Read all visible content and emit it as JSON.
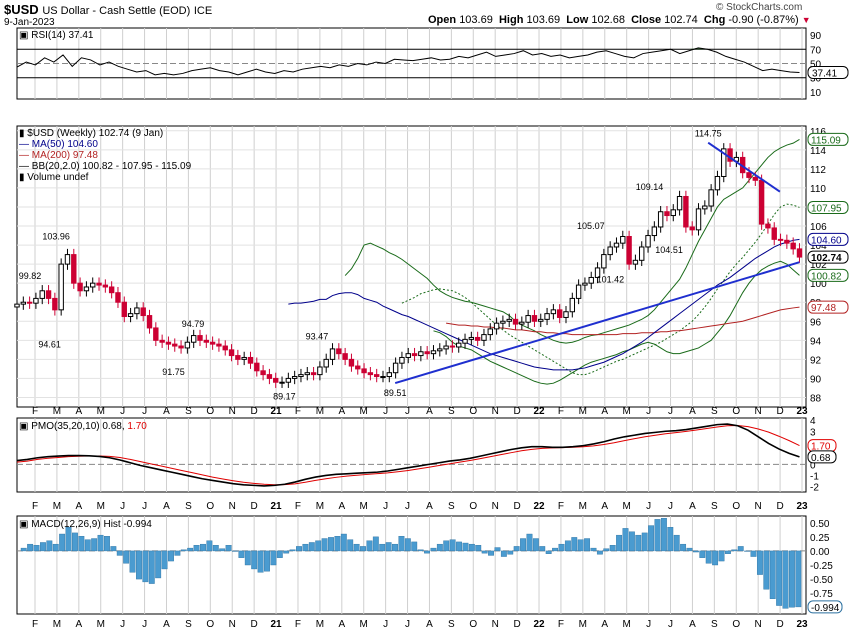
{
  "header": {
    "symbol": "$USD",
    "name": "US Dollar - Cash Settle (EOD)",
    "exchange": "ICE",
    "date": "9-Jan-2023",
    "quote": {
      "open_label": "Open",
      "open": "103.69",
      "high_label": "High",
      "high": "103.69",
      "low_label": "Low",
      "low": "102.68",
      "close_label": "Close",
      "close": "102.74",
      "chg_label": "Chg",
      "chg": "-0.90 (-0.87%)"
    },
    "watermark": "© StockCharts.com",
    "legend_arrow": "▼"
  },
  "colors": {
    "price_up": "#000000",
    "price_down": "#cc0033",
    "ma50": "#00008b",
    "ma200": "#b22222",
    "bollinger": "#1a6b1a",
    "trendline": "#1f2fcf",
    "rsi_fill": "#2e6b2e",
    "pmo_line": "#000000",
    "pmo_signal": "#e00000",
    "macd_hist": "#4a9bd0"
  },
  "x_axis": {
    "months": [
      "F",
      "M",
      "A",
      "M",
      "J",
      "J",
      "A",
      "S",
      "O",
      "N",
      "D",
      "21",
      "F",
      "M",
      "A",
      "M",
      "J",
      "J",
      "A",
      "S",
      "O",
      "N",
      "D",
      "22",
      "F",
      "M",
      "A",
      "M",
      "J",
      "J",
      "A",
      "S",
      "O",
      "N",
      "D",
      "23"
    ],
    "year_labels": [
      "21",
      "22",
      "23"
    ]
  },
  "rsi": {
    "label": "RSI(14) 37.41",
    "current": 37.41,
    "current_label": "37.41",
    "ticks": [
      "90",
      "70",
      "50",
      "30",
      "10"
    ],
    "levels": [
      70,
      50,
      30
    ],
    "y_range": [
      0,
      100
    ],
    "values": [
      45,
      52,
      48,
      58,
      52,
      62,
      46,
      58,
      55,
      48,
      52,
      46,
      42,
      38,
      40,
      34,
      36,
      34,
      36,
      40,
      42,
      44,
      40,
      38,
      34,
      38,
      42,
      38,
      36,
      40,
      38,
      42,
      44,
      46,
      44,
      48,
      46,
      50,
      48,
      52,
      50,
      56,
      55,
      54,
      56,
      58,
      55,
      56,
      60,
      58,
      62,
      66,
      60,
      62,
      64,
      68,
      62,
      64,
      60,
      62,
      58,
      60,
      62,
      66,
      68,
      64,
      60,
      58,
      64,
      66,
      68,
      70,
      64,
      68,
      72,
      70,
      66,
      60,
      56,
      52,
      46,
      40,
      42,
      40,
      38,
      37.41
    ]
  },
  "price_panel": {
    "legend": [
      {
        "text": "$USD (Weekly) 102.74 (9 Jan)",
        "color": "#000000",
        "marker": "candle"
      },
      {
        "text": "MA(50) 104.60",
        "color": "#00008b",
        "marker": "line"
      },
      {
        "text": "MA(200) 97.48",
        "color": "#b22222",
        "marker": "line"
      },
      {
        "text": "BB(20,2.0) 100.82 - 107.95 - 115.09",
        "color": "#000000",
        "marker": "band"
      },
      {
        "text": "Volume undef",
        "color": "#000000",
        "marker": "bar"
      }
    ],
    "y_ticks": [
      "116",
      "114",
      "112",
      "110",
      "108",
      "106",
      "104",
      "102",
      "100",
      "98",
      "96",
      "94",
      "92",
      "90",
      "88"
    ],
    "right_tags": [
      {
        "text": "115.09",
        "value": 115.09,
        "color": "#1a6b1a",
        "bold": false
      },
      {
        "text": "107.95",
        "value": 107.95,
        "color": "#1a6b1a",
        "bold": false
      },
      {
        "text": "104.60",
        "value": 104.6,
        "color": "#00008b",
        "bold": false
      },
      {
        "text": "102.74",
        "value": 102.74,
        "color": "#000000",
        "bold": true
      },
      {
        "text": "100.82",
        "value": 100.82,
        "color": "#1a6b1a",
        "bold": false
      },
      {
        "text": "97.48",
        "value": 97.48,
        "color": "#b22222",
        "bold": false
      }
    ],
    "annotations": [
      {
        "text": "103.96",
        "week": 6,
        "value": 103.96,
        "pos": "above"
      },
      {
        "text": "99.82",
        "week": 2,
        "value": 99.82,
        "pos": "above"
      },
      {
        "text": "94.61",
        "week": 5,
        "value": 94.61,
        "pos": "below"
      },
      {
        "text": "94.79",
        "week": 27,
        "value": 94.79,
        "pos": "above"
      },
      {
        "text": "91.75",
        "week": 24,
        "value": 91.75,
        "pos": "below"
      },
      {
        "text": "89.17",
        "week": 41,
        "value": 89.17,
        "pos": "below"
      },
      {
        "text": "93.47",
        "week": 46,
        "value": 93.47,
        "pos": "above"
      },
      {
        "text": "89.51",
        "week": 58,
        "value": 89.51,
        "pos": "below"
      },
      {
        "text": "105.07",
        "week": 88,
        "value": 105.07,
        "pos": "above"
      },
      {
        "text": "101.42",
        "week": 91,
        "value": 101.42,
        "pos": "below"
      },
      {
        "text": "109.14",
        "week": 97,
        "value": 109.14,
        "pos": "above"
      },
      {
        "text": "104.51",
        "week": 100,
        "value": 104.51,
        "pos": "below"
      },
      {
        "text": "114.75",
        "week": 106,
        "value": 114.75,
        "pos": "above"
      }
    ],
    "trendlines": [
      {
        "from": {
          "week": 58,
          "value": 89.51
        },
        "to": {
          "week": 120,
          "value": 102.2
        }
      },
      {
        "from": {
          "week": 106,
          "value": 114.75
        },
        "to": {
          "week": 117,
          "value": 109.6
        }
      }
    ]
  },
  "pmo": {
    "label_black": "PMO(35,20,10) 0.68,",
    "label_red": "1.70",
    "ticks": [
      "4",
      "3",
      "2",
      "1",
      "0",
      "-1",
      "-2"
    ],
    "tags": [
      {
        "text": "1.70",
        "value": 1.7,
        "color": "#e00000"
      },
      {
        "text": "0.68",
        "value": 0.68,
        "color": "#000000"
      }
    ],
    "y_range": [
      -2.5,
      4.2
    ],
    "pmo_values": [
      0.35,
      0.45,
      0.6,
      0.7,
      0.75,
      0.8,
      0.8,
      0.78,
      0.72,
      0.6,
      0.4,
      0.15,
      -0.1,
      -0.3,
      -0.5,
      -0.7,
      -0.9,
      -1.1,
      -1.3,
      -1.45,
      -1.6,
      -1.75,
      -1.85,
      -1.9,
      -1.95,
      -1.9,
      -1.8,
      -1.6,
      -1.35,
      -1.15,
      -1.0,
      -0.9,
      -0.85,
      -0.8,
      -0.75,
      -0.7,
      -0.6,
      -0.45,
      -0.3,
      -0.15,
      0.0,
      0.15,
      0.3,
      0.4,
      0.55,
      0.75,
      0.95,
      1.15,
      1.35,
      1.5,
      1.6,
      1.6,
      1.55,
      1.55,
      1.6,
      1.7,
      1.85,
      2.05,
      2.3,
      2.5,
      2.65,
      2.8,
      2.9,
      3.0,
      3.05,
      3.15,
      3.3,
      3.45,
      3.6,
      3.65,
      3.5,
      3.1,
      2.5,
      1.9,
      1.4,
      1.0,
      0.68
    ],
    "signal_values": [
      0.2,
      0.3,
      0.45,
      0.55,
      0.62,
      0.7,
      0.74,
      0.76,
      0.76,
      0.72,
      0.62,
      0.45,
      0.25,
      0.05,
      -0.15,
      -0.35,
      -0.55,
      -0.75,
      -0.95,
      -1.15,
      -1.32,
      -1.48,
      -1.62,
      -1.72,
      -1.8,
      -1.84,
      -1.83,
      -1.76,
      -1.62,
      -1.45,
      -1.3,
      -1.17,
      -1.06,
      -0.98,
      -0.91,
      -0.84,
      -0.77,
      -0.67,
      -0.55,
      -0.41,
      -0.26,
      -0.1,
      0.05,
      0.2,
      0.35,
      0.52,
      0.7,
      0.88,
      1.06,
      1.23,
      1.36,
      1.45,
      1.5,
      1.52,
      1.55,
      1.6,
      1.68,
      1.8,
      1.96,
      2.15,
      2.33,
      2.5,
      2.64,
      2.77,
      2.88,
      2.99,
      3.11,
      3.25,
      3.39,
      3.5,
      3.52,
      3.42,
      3.2,
      2.92,
      2.55,
      2.15,
      1.7
    ]
  },
  "macd": {
    "label": "MACD(12,26,9) Hist -0.994",
    "ticks": [
      "0.50",
      "0.25",
      "0.00",
      "-0.25",
      "-0.50",
      "-0.75",
      "-1.00"
    ],
    "tag": "-0.994",
    "y_range": [
      -1.12,
      0.62
    ],
    "hist": [
      0.05,
      0.12,
      0.1,
      0.15,
      0.18,
      0.12,
      0.3,
      0.42,
      0.32,
      0.26,
      0.2,
      0.22,
      0.28,
      0.26,
      0.08,
      -0.08,
      -0.22,
      -0.38,
      -0.5,
      -0.55,
      -0.58,
      -0.48,
      -0.32,
      -0.18,
      -0.08,
      0.02,
      0.05,
      0.1,
      0.12,
      0.18,
      0.1,
      0.04,
      0.1,
      0.0,
      -0.12,
      -0.25,
      -0.32,
      -0.38,
      -0.36,
      -0.25,
      -0.12,
      -0.04,
      0.02,
      0.08,
      0.12,
      0.15,
      0.18,
      0.22,
      0.24,
      0.26,
      0.3,
      0.2,
      0.12,
      0.08,
      0.18,
      0.25,
      0.12,
      0.15,
      0.12,
      0.26,
      0.22,
      0.16,
      0.02,
      -0.04,
      0.05,
      0.12,
      0.18,
      0.2,
      0.16,
      0.14,
      0.12,
      0.1,
      -0.04,
      -0.08,
      0.06,
      -0.1,
      -0.06,
      0.08,
      0.22,
      0.3,
      0.22,
      0.08,
      -0.05,
      0.05,
      0.12,
      0.18,
      0.24,
      0.2,
      0.22,
      0.05,
      -0.06,
      0.04,
      0.1,
      0.28,
      0.4,
      0.34,
      0.28,
      0.32,
      0.45,
      0.56,
      0.58,
      0.42,
      0.28,
      0.12,
      0.05,
      -0.02,
      -0.12,
      -0.22,
      -0.25,
      -0.18,
      -0.05,
      0.02,
      0.08,
      0.0,
      -0.1,
      -0.42,
      -0.68,
      -0.85,
      -0.97,
      -1.02,
      -1.0,
      -0.994
    ]
  },
  "chart_data": {
    "type": "candlestick",
    "title": "$USD US Dollar - Cash Settle (EOD) ICE",
    "frequency": "Weekly",
    "x_labels": [
      "F",
      "M",
      "A",
      "M",
      "J",
      "J",
      "A",
      "S",
      "O",
      "N",
      "D",
      "21",
      "F",
      "M",
      "A",
      "M",
      "J",
      "J",
      "A",
      "S",
      "O",
      "N",
      "D",
      "22",
      "F",
      "M",
      "A",
      "M",
      "J",
      "J",
      "A",
      "S",
      "O",
      "N",
      "D",
      "23"
    ],
    "y_range": [
      87,
      116.5
    ],
    "close": [
      97.8,
      98.0,
      97.9,
      98.4,
      99.2,
      98.4,
      97.2,
      102.0,
      103.0,
      100.0,
      99.2,
      99.6,
      100.0,
      99.8,
      99.6,
      99.0,
      98.0,
      96.5,
      96.8,
      97.4,
      96.6,
      95.3,
      94.0,
      93.8,
      93.6,
      93.4,
      93.2,
      93.8,
      94.5,
      94.0,
      93.8,
      93.6,
      93.4,
      93.0,
      92.4,
      92.0,
      92.2,
      91.6,
      90.8,
      90.4,
      90.0,
      89.6,
      89.6,
      90.0,
      90.2,
      90.4,
      90.6,
      90.4,
      91.2,
      92.0,
      93.1,
      92.6,
      92.0,
      91.3,
      91.0,
      90.6,
      90.4,
      90.2,
      90.2,
      90.6,
      91.6,
      92.2,
      92.6,
      92.4,
      92.8,
      92.6,
      92.9,
      93.1,
      93.4,
      93.3,
      93.7,
      94.1,
      94.3,
      94.0,
      94.6,
      95.2,
      95.8,
      96.0,
      96.2,
      95.7,
      95.9,
      96.6,
      96.0,
      96.2,
      96.8,
      97.2,
      96.4,
      97.0,
      98.4,
      99.8,
      100.0,
      100.6,
      101.6,
      103.0,
      103.8,
      104.2,
      104.9,
      102.0,
      102.4,
      103.8,
      105.0,
      105.9,
      107.5,
      107.1,
      107.7,
      109.1,
      105.9,
      105.6,
      107.8,
      108.1,
      109.8,
      111.2,
      114.1,
      112.8,
      113.2,
      111.6,
      111.1,
      110.8,
      106.2,
      105.8,
      104.6,
      104.5,
      104.2,
      103.6,
      102.74
    ],
    "ma50": [
      97.8,
      97.9,
      97.9,
      98.0,
      98.1,
      98.3,
      98.3,
      98.7,
      98.9,
      99.0,
      99.0,
      98.8,
      98.4,
      98.2,
      98.0,
      97.6,
      97.3,
      97.0,
      96.7,
      96.5,
      96.2,
      95.9,
      95.6,
      95.3,
      95.0,
      94.7,
      94.4,
      94.1,
      93.8,
      93.5,
      93.2,
      92.9,
      92.6,
      92.4,
      92.2,
      92.0,
      91.8,
      91.6,
      91.4,
      91.2,
      91.1,
      91.0,
      90.9,
      90.9,
      90.9,
      90.9,
      91.0,
      91.1,
      91.3,
      91.5,
      91.7,
      92.0,
      92.3,
      92.6,
      93.0,
      93.4,
      93.8,
      94.3,
      94.8,
      95.3,
      95.8,
      96.3,
      96.8,
      97.3,
      97.8,
      98.3,
      98.8,
      99.3,
      99.8,
      100.2,
      100.6,
      101.1,
      101.6,
      102.1,
      102.6,
      103.0,
      103.4,
      103.8,
      104.1,
      104.3,
      104.5,
      104.6
    ],
    "ma200": [
      95.8,
      95.7,
      95.6,
      95.6,
      95.5,
      95.5,
      95.4,
      95.4,
      95.3,
      95.3,
      95.2,
      95.1,
      95.1,
      95.0,
      94.9,
      94.9,
      94.8,
      94.8,
      94.7,
      94.7,
      94.6,
      94.6,
      94.6,
      94.6,
      94.6,
      94.6,
      94.6,
      94.6,
      94.7,
      94.7,
      94.7,
      94.8,
      94.8,
      94.8,
      94.9,
      94.9,
      95.0,
      95.0,
      95.1,
      95.2,
      95.3,
      95.4,
      95.5,
      95.6,
      95.7,
      95.8,
      95.9,
      96.0,
      96.2,
      96.4,
      96.6,
      96.8,
      97.0,
      97.2,
      97.3,
      97.4,
      97.48
    ],
    "bb_upper": [
      100.8,
      101.5,
      102.6,
      104.0,
      104.2,
      103.9,
      103.6,
      103.2,
      102.9,
      102.5,
      102.0,
      101.5,
      101.0,
      100.5,
      99.8,
      99.2,
      98.8,
      98.5,
      98.3,
      98.1,
      98.0,
      97.8,
      97.6,
      97.4,
      97.2,
      97.0,
      96.6,
      96.0,
      95.6,
      95.3,
      95.0,
      94.6,
      94.3,
      94.0,
      93.8,
      93.7,
      93.8,
      94.0,
      94.3,
      94.5,
      94.6,
      94.8,
      95.0,
      95.2,
      95.4,
      95.6,
      95.9,
      96.2,
      96.6,
      97.2,
      98.0,
      98.8,
      99.6,
      100.4,
      101.6,
      103.0,
      104.4,
      105.6,
      106.8,
      108.0,
      108.8,
      109.2,
      109.6,
      110.0,
      110.8,
      111.6,
      112.4,
      113.2,
      113.8,
      114.2,
      114.5,
      114.7,
      115.09
    ],
    "bb_mid": [
      97.9,
      98.2,
      98.5,
      98.9,
      99.1,
      99.3,
      99.4,
      99.3,
      99.2,
      98.9,
      98.5,
      98.0,
      97.4,
      96.8,
      96.2,
      95.6,
      95.1,
      94.6,
      94.2,
      93.8,
      93.4,
      93.0,
      92.6,
      92.2,
      91.8,
      91.4,
      91.0,
      90.6,
      90.4,
      90.4,
      90.6,
      90.9,
      91.2,
      91.5,
      91.8,
      92.0,
      92.3,
      92.6,
      92.9,
      93.2,
      93.5,
      93.8,
      94.2,
      94.6,
      95.0,
      95.5,
      96.0,
      96.7,
      97.5,
      98.4,
      99.4,
      100.3,
      101.2,
      102.0,
      102.7,
      103.5,
      104.3,
      105.2,
      106.2,
      107.2,
      108.0,
      108.3,
      108.2,
      107.95
    ],
    "bb_lower": [
      95.0,
      94.8,
      94.4,
      93.8,
      93.4,
      93.2,
      93.0,
      92.6,
      92.2,
      91.8,
      91.5,
      91.2,
      90.9,
      90.6,
      90.3,
      90.0,
      89.7,
      89.5,
      89.4,
      89.5,
      89.8,
      90.2,
      90.6,
      91.0,
      91.4,
      91.7,
      91.9,
      92.1,
      92.3,
      92.5,
      92.8,
      93.0,
      93.3,
      93.6,
      93.8,
      93.6,
      93.2,
      92.8,
      92.6,
      92.6,
      92.8,
      93.0,
      93.2,
      93.6,
      94.0,
      94.8,
      95.6,
      96.6,
      97.8,
      99.0,
      100.0,
      100.8,
      101.4,
      101.8,
      102.1,
      102.3,
      102.0,
      101.4,
      100.82
    ]
  }
}
